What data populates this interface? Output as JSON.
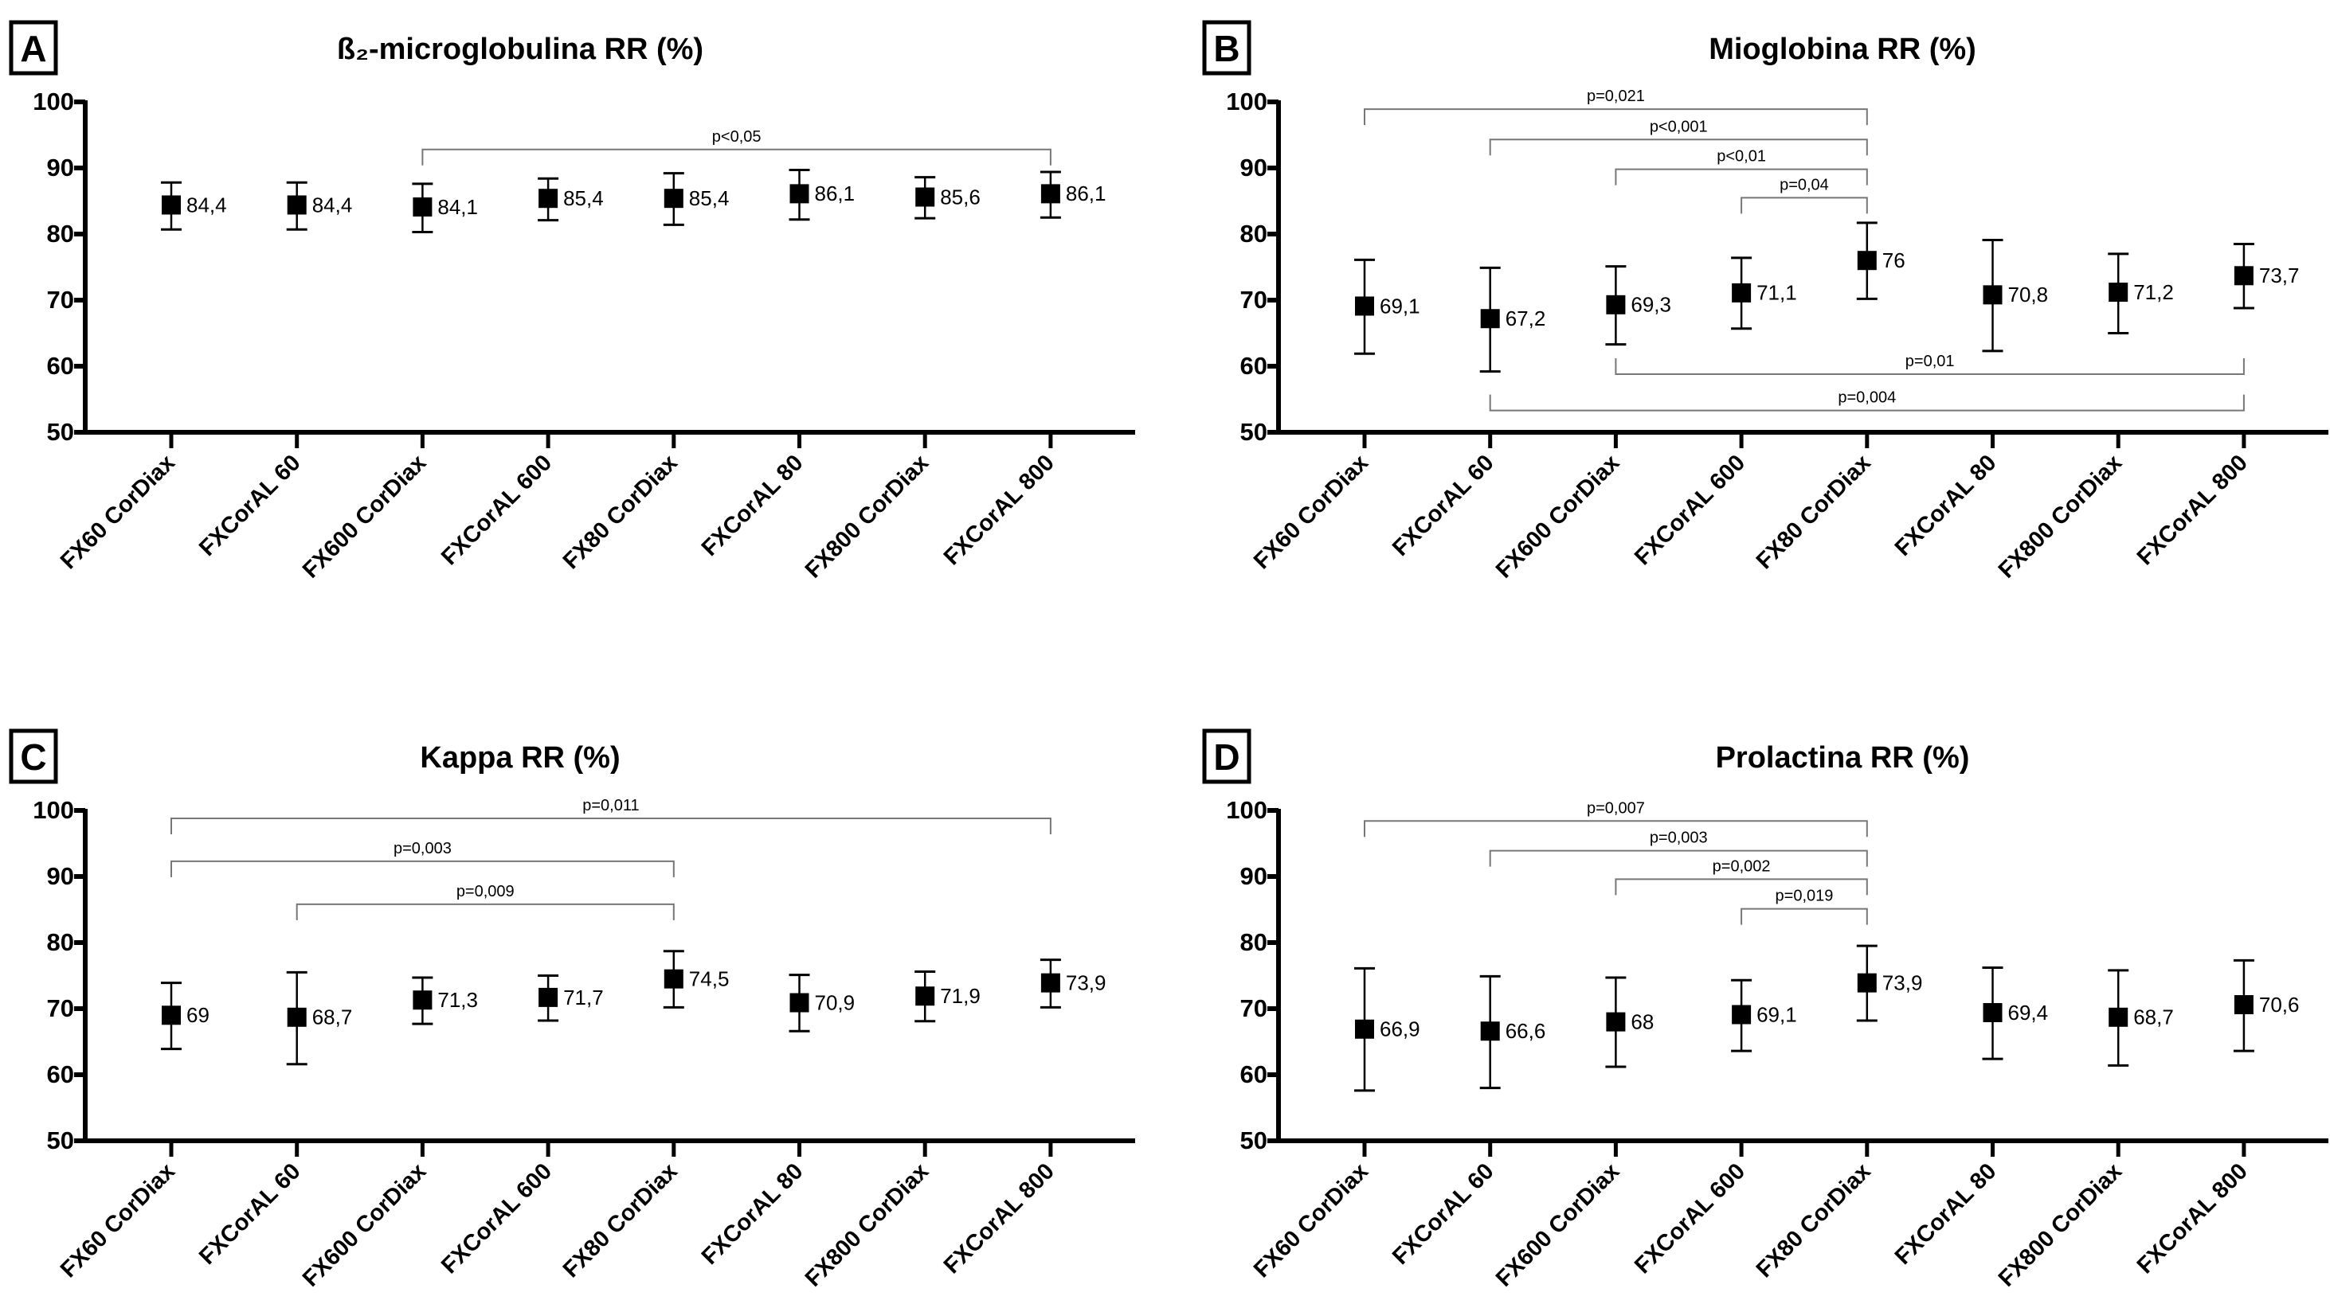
{
  "chart_data": [
    {
      "type": "scatter",
      "panel_label": "A",
      "title": "ß₂-microglobulina RR (%)",
      "categories": [
        "FX60 CorDiax",
        "FXCorAL 60",
        "FX600 CorDiax",
        "FXCorAL 600",
        "FX80 CorDiax",
        "FXCorAL 80",
        "FX800 CorDiax",
        "FXCorAL 800"
      ],
      "values": [
        84.4,
        84.4,
        84.1,
        85.4,
        85.4,
        86.1,
        85.6,
        86.1
      ],
      "value_labels": [
        "84,4",
        "84,4",
        "84,1",
        "85,4",
        "85,4",
        "86,1",
        "85,6",
        "86,1"
      ],
      "error_upper": [
        87.8,
        87.8,
        87.6,
        88.4,
        89.2,
        89.7,
        88.6,
        89.4
      ],
      "error_lower": [
        80.7,
        80.7,
        80.3,
        82.1,
        81.4,
        82.2,
        82.4,
        82.5
      ],
      "ylim": [
        50,
        100
      ],
      "yticks": [
        "50",
        "60",
        "70",
        "80",
        "90",
        "100"
      ],
      "brackets": [
        {
          "from": 3,
          "to": 8,
          "y": 92.8,
          "label": "p<0,05"
        }
      ]
    },
    {
      "type": "scatter",
      "panel_label": "B",
      "title": "Mioglobina RR (%)",
      "categories": [
        "FX60 CorDiax",
        "FXCorAL 60",
        "FX600 CorDiax",
        "FXCorAL 600",
        "FX80 CorDiax",
        "FXCorAL 80",
        "FX800 CorDiax",
        "FXCorAL 800"
      ],
      "values": [
        69.1,
        67.2,
        69.3,
        71.1,
        76,
        70.8,
        71.2,
        73.7
      ],
      "value_labels": [
        "69,1",
        "67,2",
        "69,3",
        "71,1",
        "76",
        "70,8",
        "71,2",
        "73,7"
      ],
      "error_upper": [
        76.1,
        74.9,
        75.1,
        76.4,
        81.7,
        79.1,
        77.0,
        78.5
      ],
      "error_lower": [
        61.9,
        59.2,
        63.3,
        65.7,
        70.2,
        62.3,
        65.0,
        68.8
      ],
      "ylim": [
        50,
        100
      ],
      "yticks": [
        "50",
        "60",
        "70",
        "80",
        "90",
        "100"
      ],
      "brackets": [
        {
          "from": 1,
          "to": 5,
          "y": 98.9,
          "label": "p=0,021"
        },
        {
          "from": 2,
          "to": 5,
          "y": 94.3,
          "label": "p<0,001"
        },
        {
          "from": 3,
          "to": 5,
          "y": 89.8,
          "label": "p<0,01"
        },
        {
          "from": 4,
          "to": 5,
          "y": 85.5,
          "label": "p=0,04"
        },
        {
          "from": 3,
          "to": 8,
          "y": 58.8,
          "label": "p=0,01",
          "below": true
        },
        {
          "from": 2,
          "to": 8,
          "y": 53.3,
          "label": "p=0,004",
          "below": true
        }
      ]
    },
    {
      "type": "scatter",
      "panel_label": "C",
      "title": "Kappa RR (%)",
      "categories": [
        "FX60 CorDiax",
        "FXCorAL 60",
        "FX600 CorDiax",
        "FXCorAL 600",
        "FX80 CorDiax",
        "FXCorAL 80",
        "FX800 CorDiax",
        "FXCorAL 800"
      ],
      "values": [
        69,
        68.7,
        71.3,
        71.7,
        74.5,
        70.9,
        71.9,
        73.9
      ],
      "value_labels": [
        "69",
        "68,7",
        "71,3",
        "71,7",
        "74,5",
        "70,9",
        "71,9",
        "73,9"
      ],
      "error_upper": [
        73.9,
        75.5,
        74.7,
        75.0,
        78.7,
        75.1,
        75.6,
        77.4
      ],
      "error_lower": [
        63.9,
        61.6,
        67.7,
        68.2,
        70.2,
        66.6,
        68.1,
        70.2
      ],
      "ylim": [
        50,
        100
      ],
      "yticks": [
        "50",
        "60",
        "70",
        "80",
        "90",
        "100"
      ],
      "brackets": [
        {
          "from": 1,
          "to": 8,
          "y": 98.8,
          "label": "p=0,011"
        },
        {
          "from": 1,
          "to": 5,
          "y": 92.3,
          "label": "p=0,003"
        },
        {
          "from": 2,
          "to": 5,
          "y": 85.8,
          "label": "p=0,009"
        }
      ]
    },
    {
      "type": "scatter",
      "panel_label": "D",
      "title": "Prolactina RR (%)",
      "categories": [
        "FX60 CorDiax",
        "FXCorAL 60",
        "FX600 CorDiax",
        "FXCorAL 600",
        "FX80 CorDiax",
        "FXCorAL 80",
        "FX800 CorDiax",
        "FXCorAL 800"
      ],
      "values": [
        66.9,
        66.6,
        68,
        69.1,
        73.9,
        69.4,
        68.7,
        70.6
      ],
      "value_labels": [
        "66,9",
        "66,6",
        "68",
        "69,1",
        "73,9",
        "69,4",
        "68,7",
        "70,6"
      ],
      "error_upper": [
        76.1,
        74.9,
        74.7,
        74.3,
        79.5,
        76.2,
        75.8,
        77.3
      ],
      "error_lower": [
        57.6,
        58.0,
        61.2,
        63.6,
        68.2,
        62.4,
        61.4,
        63.6
      ],
      "ylim": [
        50,
        100
      ],
      "yticks": [
        "50",
        "60",
        "70",
        "80",
        "90",
        "100"
      ],
      "brackets": [
        {
          "from": 1,
          "to": 5,
          "y": 98.4,
          "label": "p=0,007"
        },
        {
          "from": 2,
          "to": 5,
          "y": 93.9,
          "label": "p=0,003"
        },
        {
          "from": 3,
          "to": 5,
          "y": 89.6,
          "label": "p=0,002"
        },
        {
          "from": 4,
          "to": 5,
          "y": 85.1,
          "label": "p=0,019"
        }
      ]
    }
  ]
}
